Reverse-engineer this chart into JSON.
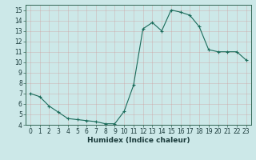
{
  "x": [
    0,
    1,
    2,
    3,
    4,
    5,
    6,
    7,
    8,
    9,
    10,
    11,
    12,
    13,
    14,
    15,
    16,
    17,
    18,
    19,
    20,
    21,
    22,
    23
  ],
  "y": [
    7.0,
    6.7,
    5.8,
    5.2,
    4.6,
    4.5,
    4.4,
    4.3,
    4.1,
    4.1,
    5.3,
    7.8,
    13.2,
    13.8,
    13.0,
    15.0,
    14.8,
    14.5,
    13.4,
    11.2,
    11.0,
    11.0,
    11.0,
    10.2
  ],
  "line_color": "#1a6b5a",
  "marker": "+",
  "bg_color": "#cce8e8",
  "grid_color": "#aacccc",
  "xlabel": "Humidex (Indice chaleur)",
  "xlim": [
    -0.5,
    23.5
  ],
  "ylim": [
    4,
    15.5
  ],
  "xticks": [
    0,
    1,
    2,
    3,
    4,
    5,
    6,
    7,
    8,
    9,
    10,
    11,
    12,
    13,
    14,
    15,
    16,
    17,
    18,
    19,
    20,
    21,
    22,
    23
  ],
  "yticks": [
    4,
    5,
    6,
    7,
    8,
    9,
    10,
    11,
    12,
    13,
    14,
    15
  ],
  "tick_fontsize": 5.5,
  "label_fontsize": 6.5
}
